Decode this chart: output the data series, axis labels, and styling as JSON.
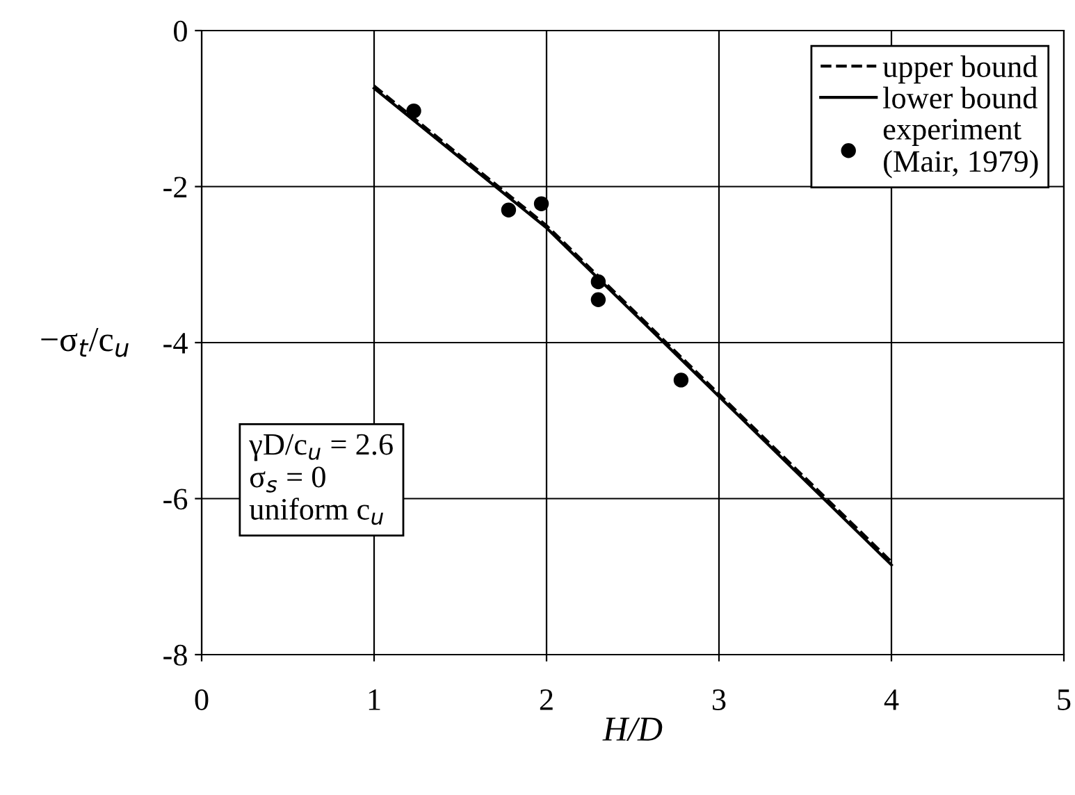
{
  "chart_data": {
    "type": "line",
    "xlabel": "H/D",
    "ylabel": "−σ$_{t}$/c$_{u}$",
    "xlim": [
      0,
      5
    ],
    "xticks": [
      0,
      1,
      2,
      3,
      4,
      5
    ],
    "ylim": [
      -8,
      0
    ],
    "yticks": [
      -8,
      -6,
      -4,
      -2,
      0
    ],
    "grid": true,
    "legend": "top right",
    "series": [
      {
        "name": "upper bound",
        "line_style": "dashed",
        "color": "#000000",
        "x": [
          1,
          2,
          3,
          4
        ],
        "values": [
          -0.71,
          -2.5,
          -4.66,
          -6.81
        ]
      },
      {
        "name": "lower bound",
        "line_style": "solid",
        "color": "#000000",
        "x": [
          1,
          2,
          3,
          4
        ],
        "values": [
          -0.74,
          -2.53,
          -4.69,
          -6.85
        ]
      },
      {
        "name": "experiment\n(Mair, 1979)",
        "type": "scatter",
        "marker": "circle",
        "color": "#000000",
        "x": [
          1.23,
          1.78,
          1.97,
          2.3,
          2.3,
          2.78
        ],
        "values": [
          -1.03,
          -2.3,
          -2.22,
          -3.22,
          -3.45,
          -4.48
        ]
      }
    ],
    "annotations": [
      "γD/c$_{u}$ = 2.6\nσ$_{s}$ = 0\nuniform c$_{u}$"
    ]
  }
}
